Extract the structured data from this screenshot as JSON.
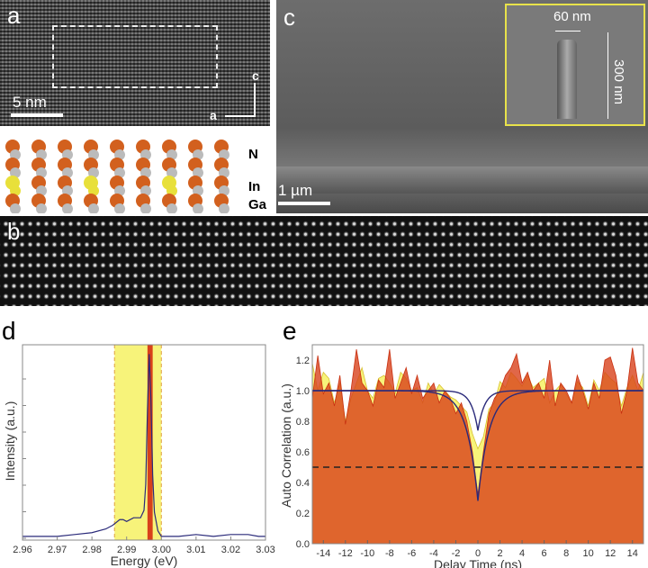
{
  "panels": {
    "a": {
      "label": "a",
      "scale_bar": "5 nm",
      "axis_c": "c",
      "axis_a": "a"
    },
    "atoms": {
      "labels": [
        "N",
        "In",
        "Ga"
      ]
    },
    "b": {
      "label": "b"
    },
    "c": {
      "label": "c",
      "scale_bar": "1 µm",
      "inset_width": "60 nm",
      "inset_height": "300 nm"
    },
    "d": {
      "label": "d"
    },
    "e": {
      "label": "e"
    }
  },
  "colors": {
    "yellow": "#f7f37a",
    "red": "#d8411a",
    "orange": "#e06a3c",
    "fit": "#2a2a7a"
  },
  "chart_data": [
    {
      "type": "line",
      "panel": "d",
      "xlabel": "Energy (eV)",
      "ylabel": "Intensity (a.u.)",
      "xlim": [
        2.96,
        3.03
      ],
      "ylim": [
        0,
        1.05
      ],
      "grid": false,
      "xticks": [
        "2.96",
        "2.97",
        "2.98",
        "2.99",
        "3.00",
        "3.01",
        "3.02",
        "3.03"
      ],
      "shaded_bands": [
        {
          "from": 2.9865,
          "to": 3.0,
          "color": "#f7f37a"
        },
        {
          "from": 2.996,
          "to": 2.9975,
          "color": "#d8411a"
        }
      ],
      "x": [
        2.96,
        2.965,
        2.97,
        2.975,
        2.98,
        2.984,
        2.986,
        2.988,
        2.989,
        2.99,
        2.992,
        2.993,
        2.994,
        2.995,
        2.9955,
        2.996,
        2.9965,
        2.997,
        2.9975,
        2.998,
        2.999,
        3.0,
        3.005,
        3.01,
        3.015,
        3.02,
        3.025,
        3.028,
        3.03
      ],
      "y": [
        0.02,
        0.02,
        0.02,
        0.03,
        0.04,
        0.06,
        0.08,
        0.11,
        0.11,
        0.1,
        0.12,
        0.12,
        0.12,
        0.16,
        0.3,
        0.7,
        1.0,
        0.75,
        0.35,
        0.15,
        0.05,
        0.02,
        0.02,
        0.03,
        0.02,
        0.03,
        0.03,
        0.02,
        0.02
      ]
    },
    {
      "type": "area",
      "panel": "e",
      "xlabel": "Delay Time (ns)",
      "ylabel": "Auto Correlation (a.u.)",
      "xlim": [
        -15,
        15
      ],
      "ylim": [
        0,
        1.3
      ],
      "grid": false,
      "xticks": [
        "-14",
        "-12",
        "-10",
        "-8",
        "-6",
        "-4",
        "-2",
        "0",
        "2",
        "4",
        "6",
        "8",
        "10",
        "12",
        "14"
      ],
      "yticks": [
        "0.0",
        "0.2",
        "0.4",
        "0.6",
        "0.8",
        "1.0",
        "1.2"
      ],
      "x_start": -15,
      "x_step": 0.5,
      "series": [
        {
          "color": "#f7f37a",
          "values": [
            1.18,
            1.0,
            1.12,
            1.08,
            0.92,
            1.05,
            0.8,
            0.95,
            1.05,
            1.15,
            1.0,
            0.95,
            1.08,
            1.1,
            1.05,
            0.98,
            1.12,
            1.08,
            1.0,
            1.02,
            0.92,
            1.05,
            0.98,
            1.04,
            1.0,
            0.96,
            0.94,
            0.9,
            0.86,
            0.72,
            0.62,
            0.7,
            0.88,
            0.92,
            1.06,
            1.02,
            1.12,
            1.08,
            1.03,
            1.1,
            1.02,
            1.05,
            1.08,
            0.92,
            1.0,
            1.04,
            0.98,
            0.92,
            1.06,
            1.02,
            0.9,
            1.07,
            1.0,
            1.12,
            1.08,
            1.05,
            0.9,
            1.02,
            1.1,
            1.0,
            1.12
          ]
        },
        {
          "color": "#d8411a",
          "values": [
            0.95,
            1.23,
            0.98,
            1.05,
            0.9,
            1.1,
            0.78,
            1.0,
            1.27,
            1.05,
            1.0,
            0.9,
            1.07,
            1.02,
            1.27,
            0.95,
            1.05,
            1.15,
            0.98,
            1.1,
            0.95,
            1.0,
            1.05,
            0.92,
            1.0,
            0.95,
            0.85,
            0.92,
            0.8,
            0.6,
            0.32,
            0.6,
            0.85,
            0.95,
            1.0,
            1.1,
            1.15,
            1.24,
            1.05,
            1.12,
            1.0,
            1.05,
            0.95,
            1.2,
            0.9,
            1.05,
            1.0,
            0.92,
            1.1,
            1.0,
            0.88,
            1.05,
            0.95,
            1.2,
            1.22,
            1.1,
            0.85,
            1.0,
            1.28,
            1.05,
            1.0
          ]
        }
      ],
      "fits": [
        {
          "g2_0": 0.28,
          "tau_ns": 1.0
        },
        {
          "g2_0": 0.74,
          "tau_ns": 0.6
        }
      ],
      "reference_line": 0.5
    }
  ]
}
